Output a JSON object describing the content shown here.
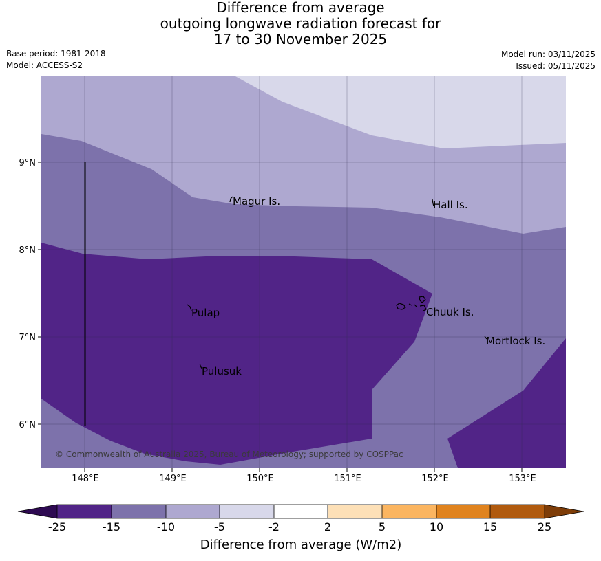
{
  "title": {
    "line1": "Difference from average",
    "line2": "outgoing longwave radiation forecast for",
    "line3": "17 to 30 November 2025"
  },
  "meta": {
    "base_period": "Base period: 1981-2018",
    "model": "Model: ACCESS-S2",
    "model_run": "Model run: 03/11/2025",
    "issued": "Issued: 05/11/2025"
  },
  "map": {
    "lon_range": [
      147.5,
      153.5
    ],
    "lat_range": [
      5.5,
      10.0
    ],
    "lat_ticks": [
      "9°N",
      "8°N",
      "7°N",
      "6°N"
    ],
    "lon_ticks": [
      "148°E",
      "149°E",
      "150°E",
      "151°E",
      "152°E",
      "153°E"
    ],
    "places": {
      "magur": "Magur Is.",
      "hall": "Hall Is.",
      "pulap": "Pulap",
      "chuuk": "Chuuk Is.",
      "mortlock": "Mortlock Is.",
      "pulusuk": "Pulusuk"
    },
    "copyright": "© Commonwealth of Australia 2025, Bureau of Meteorology; supported by COSPPac",
    "colors": {
      "lt_minus25": "#2e0a52",
      "minus25_to_minus15": "#512487",
      "minus15_to_minus10": "#7d72ab",
      "minus10_to_minus5": "#aea8d0",
      "minus5_to_minus2": "#d8d8ea"
    }
  },
  "colorbar": {
    "label": "Difference from average (W/m2)",
    "ticks": [
      "-25",
      "-15",
      "-10",
      "-5",
      "-2",
      "2",
      "5",
      "10",
      "15",
      "25"
    ],
    "colors": {
      "low_extend": "#2e0a52",
      "c1": "#512487",
      "c2": "#7d72ab",
      "c3": "#aea8d0",
      "c4": "#d8d8ea",
      "c5": "#ffffff",
      "c6": "#fde0b7",
      "c7": "#fbb560",
      "c8": "#e0831e",
      "c9": "#b05a0e",
      "high_extend": "#7e3d08"
    }
  }
}
